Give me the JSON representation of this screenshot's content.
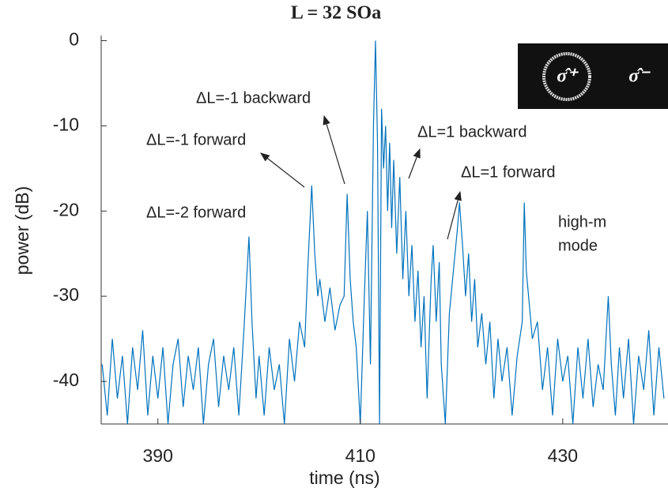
{
  "chart_data": {
    "type": "line",
    "title": "L = 32 SOa",
    "xlabel": "time (ns)",
    "ylabel": "power (dB)",
    "color": "#0072bd",
    "xlim": [
      384.4,
      440.4
    ],
    "xticks": [
      390,
      410,
      430
    ],
    "ylim": [
      -45,
      0.6
    ],
    "yticks": [
      0,
      -10,
      -20,
      -30,
      -40
    ],
    "x": [
      384.5,
      385,
      385.5,
      386,
      386.5,
      387,
      387.5,
      388,
      388.5,
      389,
      389.5,
      390,
      390.5,
      391,
      391.5,
      392,
      392.5,
      393,
      393.5,
      394,
      394.5,
      395,
      395.5,
      396,
      396.5,
      397,
      397.5,
      398,
      398.5,
      399,
      399.3,
      399.7,
      400,
      400.5,
      401,
      401.5,
      402,
      402.5,
      403,
      403.5,
      404,
      404.5,
      404.8,
      405.2,
      405.5,
      405.8,
      406,
      406.5,
      407,
      407.5,
      408,
      408.4,
      408.7,
      409,
      409.3,
      409.6,
      410,
      410.4,
      410.7,
      411,
      411.3,
      411.5,
      411.7,
      411.9,
      412.1,
      412.3,
      412.5,
      412.7,
      412.9,
      413.1,
      413.3,
      413.6,
      413.9,
      414.2,
      414.5,
      414.8,
      415.1,
      415.4,
      415.7,
      416,
      416.3,
      416.6,
      417,
      417.2,
      417.5,
      417.8,
      418,
      418.4,
      418.8,
      419.2,
      419.6,
      419.8,
      420.1,
      420.4,
      420.7,
      421,
      421.3,
      421.6,
      422,
      422.4,
      422.8,
      423.2,
      423.6,
      424,
      424.5,
      425,
      425.5,
      426,
      426.2,
      426.4,
      426.7,
      427,
      427.5,
      428,
      428.5,
      429,
      429.5,
      430,
      430.5,
      431,
      431.5,
      432,
      432.5,
      433,
      433.5,
      434,
      434.5,
      434.8,
      435.2,
      435.6,
      436,
      436.5,
      437,
      437.5,
      438,
      438.5,
      439,
      439.5,
      440
    ],
    "values": [
      -38,
      -44,
      -35,
      -42,
      -37,
      -45,
      -36,
      -41,
      -34,
      -44,
      -37,
      -42,
      -36,
      -45,
      -38,
      -35,
      -43,
      -37,
      -41,
      -36,
      -45,
      -38,
      -35,
      -43,
      -37,
      -41,
      -36,
      -44,
      -34,
      -23,
      -33,
      -42,
      -37,
      -44,
      -36,
      -41,
      -38,
      -45,
      -35,
      -40,
      -33,
      -36,
      -27,
      -17,
      -25,
      -30,
      -28,
      -33,
      -29,
      -34,
      -31,
      -30,
      -18,
      -28,
      -33,
      -36,
      -45,
      -30,
      -20,
      -38,
      -10,
      0,
      -12,
      -45,
      -8,
      -15,
      -10,
      -20,
      -12,
      -22,
      -14,
      -25,
      -16,
      -28,
      -20,
      -30,
      -24,
      -33,
      -27,
      -36,
      -30,
      -42,
      -28,
      -24,
      -33,
      -26,
      -38,
      -45,
      -32,
      -27,
      -22,
      -19,
      -24,
      -30,
      -25,
      -33,
      -28,
      -36,
      -32,
      -38,
      -33,
      -42,
      -35,
      -40,
      -36,
      -44,
      -37,
      -33,
      -19,
      -27,
      -31,
      -35,
      -33,
      -41,
      -36,
      -44,
      -35,
      -40,
      -37,
      -45,
      -36,
      -42,
      -35,
      -43,
      -38,
      -41,
      -30,
      -38,
      -44,
      -36,
      -42,
      -35,
      -45,
      -37,
      -41,
      -34,
      -44,
      -36,
      -42
    ],
    "annotations": [
      "ΔL=-2 forward",
      "ΔL=-1 forward",
      "ΔL=-1 backward",
      "ΔL=1 backward",
      "ΔL=1 forward"
    ],
    "mode_label": [
      "high-m",
      "mode"
    ],
    "inset_labels": [
      "σ̂⁺",
      "σ̂⁻"
    ]
  }
}
